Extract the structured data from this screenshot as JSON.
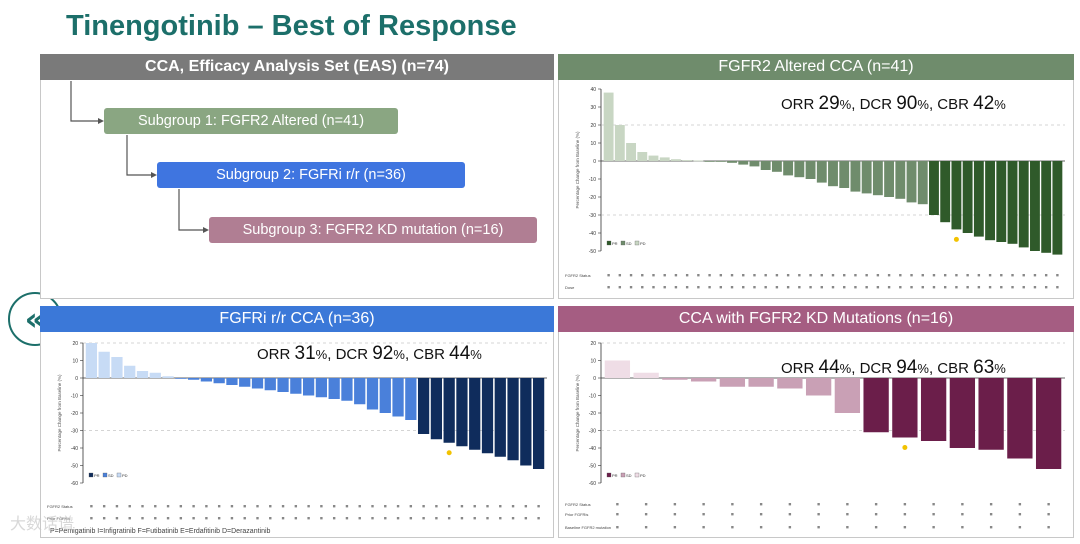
{
  "title": "Tinengotinib – Best of Response",
  "back_button": "«",
  "eas_panel": {
    "header": "CCA, Efficacy Analysis Set (EAS) (n=74)",
    "subgroup1": "Subgroup 1: FGFR2 Altered (n=41)",
    "subgroup2": "Subgroup 2: FGFRi r/r (n=36)",
    "subgroup3": "Subgroup 3: FGFR2 KD mutation (n=16)"
  },
  "footnote": "P=Pemigatinib I=Infigratinib F=Futibatinib E=Erdafitinib D=Derazantinib",
  "watermark": "大数话谱",
  "chart_data": [
    {
      "id": "fgfr2",
      "type": "bar",
      "header": "FGFR2 Altered CCA (n=41)",
      "stats": {
        "orr_label": "ORR",
        "orr": "29",
        "dcr_label": "DCR",
        "dcr": "90",
        "cbr_label": "CBR",
        "cbr": "42",
        "pct": "%"
      },
      "ylabel": "Percentage Change from Baseline (%)",
      "ylim": [
        -50,
        40
      ],
      "yticks": [
        "40",
        "30",
        "20",
        "10",
        "0",
        "-10",
        "-20",
        "-30",
        "-40",
        "-50"
      ],
      "values": [
        38,
        20,
        10,
        5,
        3,
        2,
        1,
        0.5,
        0.3,
        0,
        0,
        -1,
        -2,
        -3,
        -5,
        -6,
        -8,
        -9,
        -10,
        -12,
        -14,
        -15,
        -17,
        -18,
        -19,
        -20,
        -21,
        -23,
        -24,
        -30,
        -34,
        -38,
        -40,
        -42,
        -44,
        -45,
        -46,
        -48,
        -50,
        -51,
        -52
      ],
      "row_labels": [
        "FGFR2 Status",
        "Dose"
      ],
      "legend": [
        "PR",
        "SD",
        "PD"
      ]
    },
    {
      "id": "rr",
      "type": "bar",
      "header": "FGFRi r/r CCA (n=36)",
      "stats": {
        "orr_label": "ORR",
        "orr": "31",
        "dcr_label": "DCR",
        "dcr": "92",
        "cbr_label": "CBR",
        "cbr": "44",
        "pct": "%"
      },
      "ylabel": "Percentage Change from Baseline (%)",
      "ylim": [
        -60,
        20
      ],
      "yticks": [
        "20",
        "10",
        "0",
        "-10",
        "-20",
        "-30",
        "-40",
        "-50",
        "-60"
      ],
      "values": [
        20,
        15,
        12,
        7,
        4,
        3,
        1,
        0,
        -1,
        -2,
        -3,
        -4,
        -5,
        -6,
        -7,
        -8,
        -9,
        -10,
        -11,
        -12,
        -13,
        -15,
        -18,
        -20,
        -22,
        -24,
        -32,
        -35,
        -37,
        -39,
        -41,
        -43,
        -45,
        -47,
        -50,
        -52
      ],
      "row_labels": [
        "FGFR2 Status",
        "Prior FGFRis"
      ],
      "legend": [
        "PR",
        "SD",
        "PD"
      ]
    },
    {
      "id": "kd",
      "type": "bar",
      "header": "CCA with FGFR2 KD Mutations (n=16)",
      "stats": {
        "orr_label": "ORR",
        "orr": "44",
        "dcr_label": "DCR",
        "dcr": "94",
        "cbr_label": "CBR",
        "cbr": "63",
        "pct": "%"
      },
      "ylabel": "Percentage Change from Baseline (%)",
      "ylim": [
        -60,
        20
      ],
      "yticks": [
        "20",
        "10",
        "0",
        "-10",
        "-20",
        "-30",
        "-40",
        "-50",
        "-60"
      ],
      "values": [
        10,
        3,
        -1,
        -2,
        -5,
        -5,
        -6,
        -10,
        -20,
        -31,
        -34,
        -36,
        -40,
        -41,
        -46,
        -52
      ],
      "row_labels": [
        "FGFR2 Status",
        "Prior FGFRis",
        "Baseline FGFR2 mutation"
      ],
      "legend": [
        "PR",
        "SD",
        "PD"
      ]
    }
  ]
}
